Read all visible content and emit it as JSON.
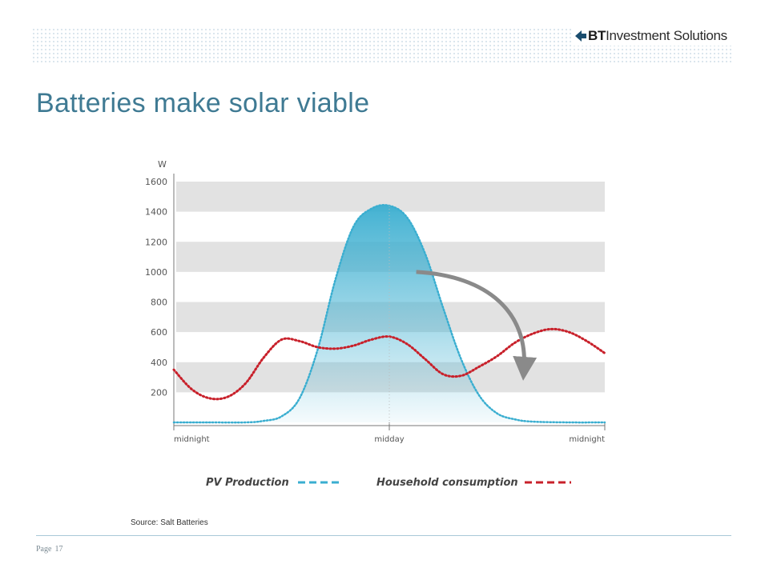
{
  "header": {
    "logo_mark": "BT",
    "logo_text": "Investment Solutions",
    "icon": "bt-arrow-icon"
  },
  "slide": {
    "title": "Batteries make solar viable",
    "source": "Source: Salt Batteries",
    "page_label": "Page",
    "page_number": "17"
  },
  "colors": {
    "title": "#3f7a93",
    "pv": "#3aaed0",
    "household": "#c8202a",
    "band": "#e2e2e2",
    "arrow": "#8a8a8a"
  },
  "chart_data": {
    "type": "area",
    "ylabel": "W",
    "yticks": [
      0,
      200,
      400,
      600,
      800,
      1000,
      1200,
      1400,
      1600
    ],
    "ytick_labels": [
      "",
      "200",
      "400",
      "600",
      "800",
      "1000",
      "1200",
      "1400",
      "1600"
    ],
    "ylim": [
      0,
      1600
    ],
    "xlim": [
      0,
      24
    ],
    "xticks": [
      0,
      12,
      24
    ],
    "xtick_labels": [
      "midnight",
      "midday",
      "midnight"
    ],
    "grid": "alternating horizontal bands",
    "legend": "bottom",
    "series": [
      {
        "name": "PV Production",
        "style": "dotted, filled area",
        "x": [
          0,
          2,
          4,
          5,
          6,
          7,
          8,
          9,
          10,
          11,
          12,
          13,
          14,
          15,
          16,
          17,
          18,
          19,
          20,
          22,
          24
        ],
        "values": [
          0,
          0,
          0,
          10,
          40,
          160,
          480,
          950,
          1300,
          1420,
          1440,
          1360,
          1120,
          760,
          420,
          180,
          60,
          20,
          5,
          0,
          0
        ]
      },
      {
        "name": "Household consumption",
        "style": "dotted",
        "x": [
          0,
          1,
          2,
          3,
          4,
          5,
          6,
          7,
          8,
          9,
          10,
          11,
          12,
          13,
          14,
          15,
          16,
          17,
          18,
          19,
          20,
          21,
          22,
          23,
          24
        ],
        "values": [
          350,
          220,
          160,
          170,
          260,
          430,
          550,
          540,
          500,
          490,
          510,
          550,
          570,
          520,
          420,
          320,
          310,
          370,
          440,
          530,
          590,
          620,
          600,
          540,
          460
        ]
      }
    ],
    "annotations": [
      {
        "type": "arrow",
        "from": [
          13.5,
          1000
        ],
        "to": [
          19.5,
          250
        ]
      }
    ]
  }
}
